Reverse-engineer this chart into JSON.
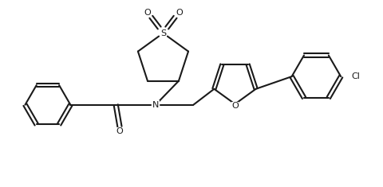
{
  "bg_color": "#ffffff",
  "line_color": "#1a1a1a",
  "lw": 1.5,
  "figsize": [
    4.8,
    2.35
  ],
  "dpi": 100,
  "xlim": [
    0,
    10
  ],
  "ylim": [
    0,
    4.9
  ]
}
